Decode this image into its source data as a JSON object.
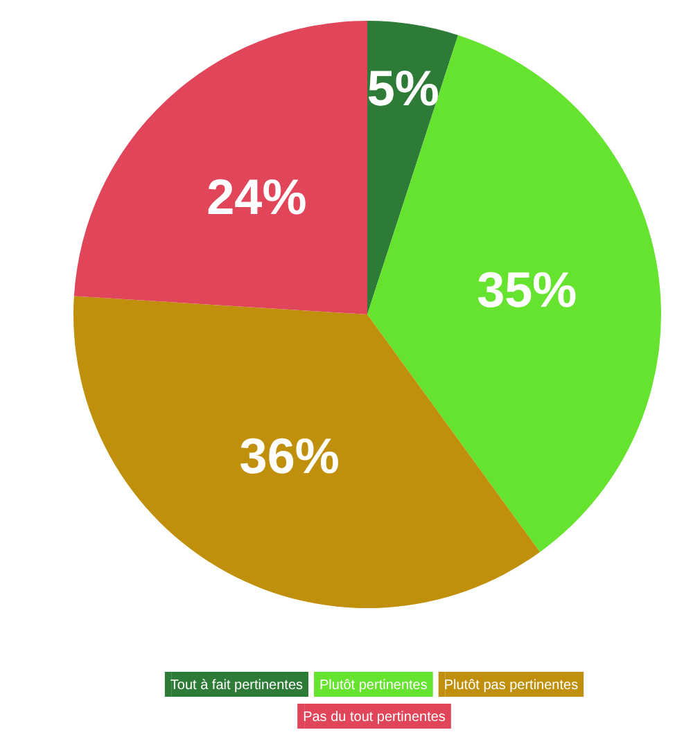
{
  "chart_data": {
    "type": "pie",
    "categories": [
      "Tout à fait pertinentes",
      "Plutôt pertinentes",
      "Plutôt pas pertinentes",
      "Pas du tout pertinentes"
    ],
    "values": [
      5,
      35,
      36,
      24
    ],
    "colors": [
      "#2e7b38",
      "#66e32e",
      "#c0900c",
      "#e0455a"
    ],
    "value_labels": [
      "5%",
      "35%",
      "36%",
      "24%"
    ],
    "legend": "bottom"
  }
}
